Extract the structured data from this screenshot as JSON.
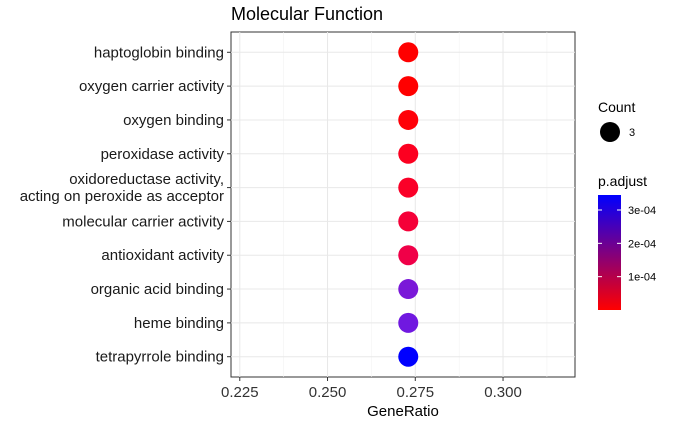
{
  "chart_data": {
    "type": "scatter",
    "title": "Molecular Function",
    "xlabel": "GeneRatio",
    "ylabel": "",
    "xlim": [
      0.2225,
      0.3205
    ],
    "xticks": [
      "0.225",
      "0.250",
      "0.275",
      "0.300"
    ],
    "xtick_values": [
      0.225,
      0.25,
      0.275,
      0.3
    ],
    "grid": true,
    "legend_position": "right",
    "categories": [
      [
        "haptoglobin binding"
      ],
      [
        "oxygen carrier activity"
      ],
      [
        "oxygen binding"
      ],
      [
        "peroxidase activity"
      ],
      [
        "oxidoreductase activity,",
        "acting on peroxide as acceptor"
      ],
      [
        "molecular carrier activity"
      ],
      [
        "antioxidant activity"
      ],
      [
        "organic acid binding"
      ],
      [
        "heme binding"
      ],
      [
        "tetrapyrrole binding"
      ]
    ],
    "points": [
      {
        "gene_ratio": 0.273,
        "count": 3,
        "color": "#ff0000"
      },
      {
        "gene_ratio": 0.273,
        "count": 3,
        "color": "#ff0000"
      },
      {
        "gene_ratio": 0.273,
        "count": 3,
        "color": "#ff0008"
      },
      {
        "gene_ratio": 0.273,
        "count": 3,
        "color": "#fc0020"
      },
      {
        "gene_ratio": 0.273,
        "count": 3,
        "color": "#fa0028"
      },
      {
        "gene_ratio": 0.273,
        "count": 3,
        "color": "#f50038"
      },
      {
        "gene_ratio": 0.273,
        "count": 3,
        "color": "#f00048"
      },
      {
        "gene_ratio": 0.273,
        "count": 3,
        "color": "#7a18d8"
      },
      {
        "gene_ratio": 0.273,
        "count": 3,
        "color": "#7018e0"
      },
      {
        "gene_ratio": 0.273,
        "count": 3,
        "color": "#0000ff"
      }
    ],
    "legend": {
      "size": {
        "title": "Count",
        "entries": [
          {
            "label": "3",
            "value": 3
          }
        ]
      },
      "color": {
        "title": "p.adjust",
        "low_color": "#ff0000",
        "high_color": "#0000ff",
        "range": [
          0.0,
          0.000345
        ],
        "ticks": [
          {
            "label": "1e-04",
            "value": 0.0001
          },
          {
            "label": "2e-04",
            "value": 0.0002
          },
          {
            "label": "3e-04",
            "value": 0.0003
          }
        ]
      }
    }
  }
}
